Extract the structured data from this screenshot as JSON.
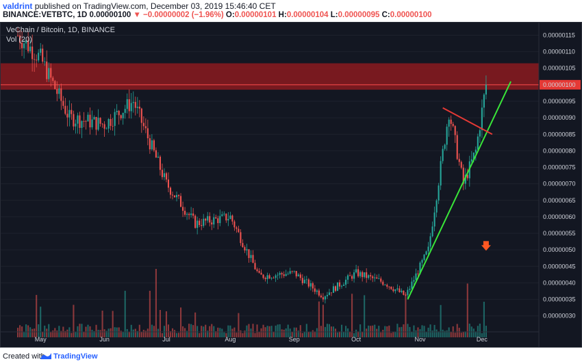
{
  "header": {
    "author": "valdrint",
    "published": "published on TradingView.com, December 03, 2019 15:46:40 CET",
    "symbol": "BINANCE:VETBTC, 1D",
    "last": "0.00000100",
    "change": "▼ −0.00000002 (−1.96%)",
    "o_label": "O:",
    "o": "0.00000101",
    "h_label": "H:",
    "h": "0.00000104",
    "l_label": "L:",
    "l": "0.00000095",
    "c_label": "C:",
    "c": "0.00000100"
  },
  "legend": {
    "title": "VeChain / Bitcoin, 1D, BINANCE",
    "volume": "Vol (20)"
  },
  "footer": {
    "created_with": "Created with",
    "brand": "TradingView"
  },
  "colors": {
    "background": "#131722",
    "up": "#26a69a",
    "down": "#ef5350",
    "resistance_zone": "#8b1a1f",
    "support_trendline": "#39e639",
    "triangle_line": "#e53935",
    "last_price_badge": "#e53935"
  },
  "chart_data": {
    "type": "candlestick",
    "y_axis": {
      "range": [
        2.6e-07,
        1.18e-06
      ],
      "ticks": [
        "0.00000115",
        "0.00000110",
        "0.00000105",
        "0.00000100",
        "0.00000095",
        "0.00000090",
        "0.00000085",
        "0.00000080",
        "0.00000075",
        "0.00000070",
        "0.00000065",
        "0.00000060",
        "0.00000055",
        "0.00000050",
        "0.00000045",
        "0.00000040",
        "0.00000035",
        "0.00000030"
      ],
      "last_price_label": "0.00000100"
    },
    "x_axis": {
      "ticks": [
        "May",
        "Jun",
        "Jul",
        "Aug",
        "Sep",
        "Oct",
        "Nov",
        "Dec"
      ]
    },
    "close_path_monthly": [
      {
        "date": "2019-04-20",
        "close": 1.15e-06
      },
      {
        "date": "2019-05-01",
        "close": 1.08e-06
      },
      {
        "date": "2019-05-15",
        "close": 9e-07
      },
      {
        "date": "2019-06-01",
        "close": 8.8e-07
      },
      {
        "date": "2019-06-15",
        "close": 9.5e-07
      },
      {
        "date": "2019-07-01",
        "close": 7e-07
      },
      {
        "date": "2019-07-15",
        "close": 5.8e-07
      },
      {
        "date": "2019-08-01",
        "close": 6e-07
      },
      {
        "date": "2019-08-15",
        "close": 4.2e-07
      },
      {
        "date": "2019-09-01",
        "close": 4.3e-07
      },
      {
        "date": "2019-09-15",
        "close": 3.6e-07
      },
      {
        "date": "2019-10-01",
        "close": 4.3e-07
      },
      {
        "date": "2019-10-15",
        "close": 4e-07
      },
      {
        "date": "2019-10-25",
        "close": 3.6e-07
      },
      {
        "date": "2019-11-05",
        "close": 5e-07
      },
      {
        "date": "2019-11-15",
        "close": 9.2e-07
      },
      {
        "date": "2019-11-22",
        "close": 7e-07
      },
      {
        "date": "2019-11-28",
        "close": 8e-07
      },
      {
        "date": "2019-12-03",
        "close": 1e-06
      }
    ],
    "resistance_zone": {
      "low": 9.85e-07,
      "high": 1.065e-06
    },
    "resistance_line": 1e-06,
    "support_trendline": {
      "from": {
        "date": "2019-10-26",
        "price": 3.5e-07
      },
      "to": {
        "date": "2019-12-15",
        "price": 1.01e-06
      }
    },
    "triangle_resistance": {
      "from": {
        "date": "2019-11-12",
        "price": 9.3e-07
      },
      "to": {
        "date": "2019-12-06",
        "price": 8.5e-07
      }
    },
    "annotation_arrow": {
      "date": "2019-12-03",
      "price": 5.1e-07,
      "direction": "down"
    }
  }
}
